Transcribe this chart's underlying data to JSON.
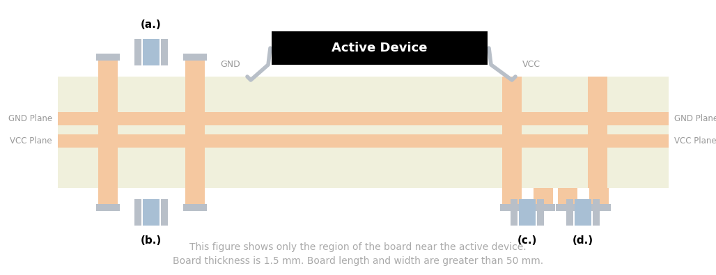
{
  "bg_color": "#ffffff",
  "board_color": "#f0f0dc",
  "plane_color": "#f5c8a0",
  "cap_body_color": "#a8bfd4",
  "cap_end_color": "#b8bfc8",
  "active_device_bg": "#000000",
  "active_device_text": "#ffffff",
  "label_color": "#999999",
  "note_color": "#aaaaaa",
  "title": "Active Device",
  "note_line1": "This figure shows only the region of the board near the active device.",
  "note_line2": "Board thickness is 1.5 mm. Board length and width are greater than 50 mm.",
  "fig_w": 10.28,
  "fig_h": 3.95,
  "dpi": 100
}
